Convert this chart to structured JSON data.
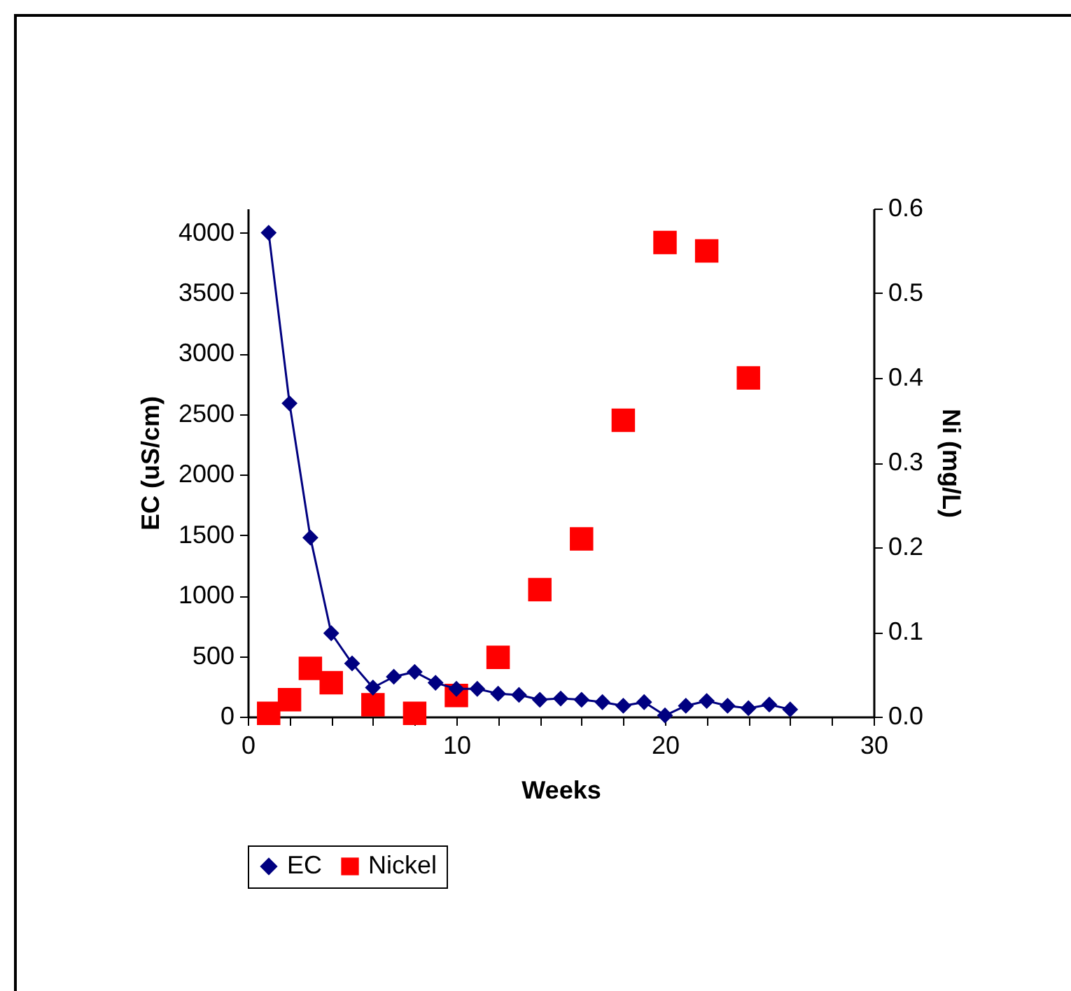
{
  "chart_data": {
    "type": "line",
    "xlabel": "Weeks",
    "ylabel": "EC (uS/cm)",
    "y2label": "Ni (mg/L)",
    "xlim": [
      0,
      30
    ],
    "xticks": [
      0,
      {
        "value": 2,
        "label": null
      },
      {
        "value": 4,
        "label": null
      },
      {
        "value": 6,
        "label": null
      },
      {
        "value": 8,
        "label": null
      },
      10,
      {
        "value": 12,
        "label": null
      },
      {
        "value": 14,
        "label": null
      },
      {
        "value": 16,
        "label": null
      },
      {
        "value": 18,
        "label": null
      },
      20,
      {
        "value": 22,
        "label": null
      },
      {
        "value": 24,
        "label": null
      },
      {
        "value": 26,
        "label": null
      },
      {
        "value": 28,
        "label": null
      },
      30
    ],
    "ylim": [
      0,
      4200
    ],
    "yticks": [
      0,
      500,
      1000,
      1500,
      2000,
      2500,
      3000,
      3500,
      4000
    ],
    "y2lim": [
      0,
      0.6
    ],
    "y2ticks": [
      {
        "value": 0,
        "label": "0.0"
      },
      0.1,
      0.2,
      0.3,
      0.4,
      0.5,
      0.6
    ],
    "grid": false,
    "legend": "bottom",
    "line_style": "solid",
    "series": [
      {
        "name": "EC",
        "marker": "diamond",
        "color": "#000080",
        "x": [
          1,
          2,
          3,
          4,
          5,
          6,
          7,
          8,
          9,
          10,
          11,
          12,
          13,
          14,
          15,
          16,
          17,
          18,
          19,
          20,
          21,
          22,
          23,
          24,
          25,
          26
        ],
        "values": [
          4000,
          2590,
          1480,
          690,
          440,
          240,
          330,
          370,
          280,
          230,
          230,
          190,
          180,
          140,
          150,
          140,
          120,
          90,
          120,
          10,
          90,
          130,
          90,
          70,
          100,
          60
        ]
      },
      {
        "name": "Nickel",
        "type": "scatter",
        "marker": "square",
        "axis": "y2",
        "color": "#ff0000",
        "x": [
          1,
          2,
          3,
          4,
          6,
          8,
          10,
          12,
          14,
          16,
          18,
          20,
          22,
          24
        ],
        "values": [
          0.004,
          0.02,
          0.057,
          0.04,
          0.014,
          0.004,
          0.025,
          0.07,
          0.15,
          0.21,
          0.35,
          0.56,
          0.55,
          0.4
        ]
      }
    ]
  }
}
